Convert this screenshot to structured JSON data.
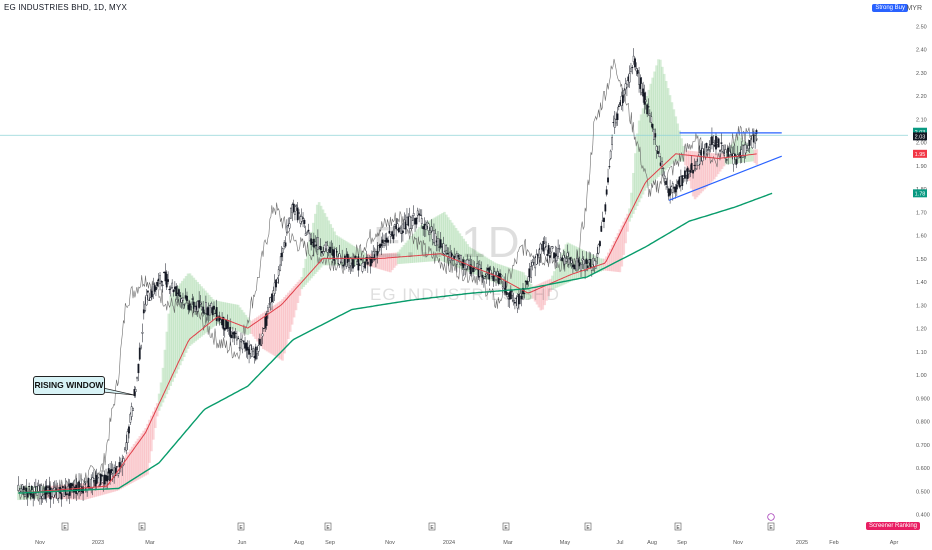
{
  "header": {
    "title": "EG INDUSTRIES BHD, 1D, MYX",
    "currency": "MYR",
    "top_flag": "Strong Buy",
    "bottom_flag": "Screener Ranking"
  },
  "watermark": {
    "symbol": "E... 1D",
    "name": "EG INDUSTRIES BHD"
  },
  "annotation": {
    "label": "RISING WINDOW"
  },
  "colors": {
    "up": "#131722",
    "down": "#131722",
    "ema_fast": "#e0404a",
    "ema_slow": "#089c6b",
    "trendline": "#2962ff",
    "cloud_bull": "#a5d6a7",
    "cloud_bear": "#f7a4aa",
    "compare_line": "#555555",
    "hline": "#8fd3d8"
  },
  "price_tags": [
    {
      "label": "2.03",
      "color": "#089981"
    },
    {
      "label": "2.03",
      "color": "#131722"
    },
    {
      "label": "1.95",
      "color": "#f23645"
    },
    {
      "label": "1.78",
      "color": "#089981"
    }
  ],
  "chart_data": {
    "type": "candlestick",
    "title": "EG INDUSTRIES BHD, 1D, MYX",
    "ylim": [
      0.4,
      2.55
    ],
    "y_ticks": [
      "2.50",
      "2.40",
      "2.30",
      "2.20",
      "2.10",
      "2.00",
      "1.90",
      "1.80",
      "1.70",
      "1.60",
      "1.50",
      "1.40",
      "1.30",
      "1.20",
      "1.10",
      "1.00",
      "0.900",
      "0.800",
      "0.700",
      "0.600",
      "0.500",
      "0.400"
    ],
    "x_ticks": [
      "Nov",
      "2023",
      "Mar",
      "Jun",
      "Aug",
      "Sep",
      "Nov",
      "2024",
      "Mar",
      "May",
      "Jul",
      "Aug",
      "Sep",
      "Nov",
      "2025",
      "Feb",
      "Apr"
    ],
    "event_markers": [
      "E",
      "E",
      "E",
      "E",
      "E",
      "E",
      "E",
      "E",
      "E"
    ],
    "price_path": [
      [
        "2022-10-20",
        0.5
      ],
      [
        "2022-12-01",
        0.49
      ],
      [
        "2023-01-05",
        0.53
      ],
      [
        "2023-02-05",
        0.6
      ],
      [
        "2023-02-15",
        0.85
      ],
      [
        "2023-02-20",
        0.97
      ],
      [
        "2023-03-01",
        1.32
      ],
      [
        "2023-03-20",
        1.42
      ],
      [
        "2023-04-15",
        1.3
      ],
      [
        "2023-05-10",
        1.28
      ],
      [
        "2023-06-05",
        1.14
      ],
      [
        "2023-06-25",
        1.09
      ],
      [
        "2023-07-15",
        1.4
      ],
      [
        "2023-08-01",
        1.73
      ],
      [
        "2023-08-20",
        1.58
      ],
      [
        "2023-09-20",
        1.5
      ],
      [
        "2023-10-15",
        1.47
      ],
      [
        "2023-11-15",
        1.62
      ],
      [
        "2023-12-10",
        1.68
      ],
      [
        "2024-01-05",
        1.53
      ],
      [
        "2024-02-01",
        1.46
      ],
      [
        "2024-03-01",
        1.42
      ],
      [
        "2024-03-20",
        1.3
      ],
      [
        "2024-04-15",
        1.55
      ],
      [
        "2024-05-20",
        1.48
      ],
      [
        "2024-06-10",
        1.47
      ],
      [
        "2024-06-20",
        1.72
      ],
      [
        "2024-06-28",
        2.06
      ],
      [
        "2024-07-20",
        2.35
      ],
      [
        "2024-08-10",
        2.03
      ],
      [
        "2024-08-25",
        1.78
      ],
      [
        "2024-09-15",
        1.87
      ],
      [
        "2024-10-10",
        2.01
      ],
      [
        "2024-11-01",
        1.92
      ],
      [
        "2024-11-25",
        2.03
      ]
    ],
    "ema_fast": [
      [
        "2022-10-20",
        0.49
      ],
      [
        "2023-01-20",
        0.52
      ],
      [
        "2023-03-01",
        0.75
      ],
      [
        "2023-04-15",
        1.15
      ],
      [
        "2023-05-15",
        1.25
      ],
      [
        "2023-06-15",
        1.2
      ],
      [
        "2023-07-20",
        1.3
      ],
      [
        "2023-09-01",
        1.5
      ],
      [
        "2023-11-01",
        1.5
      ],
      [
        "2024-01-01",
        1.52
      ],
      [
        "2024-03-01",
        1.42
      ],
      [
        "2024-04-01",
        1.35
      ],
      [
        "2024-05-15",
        1.43
      ],
      [
        "2024-06-20",
        1.48
      ],
      [
        "2024-08-01",
        1.83
      ],
      [
        "2024-09-01",
        1.95
      ],
      [
        "2024-10-15",
        1.93
      ],
      [
        "2024-11-25",
        1.95
      ]
    ],
    "ema_slow": [
      [
        "2022-10-20",
        0.49
      ],
      [
        "2023-02-01",
        0.51
      ],
      [
        "2023-03-15",
        0.62
      ],
      [
        "2023-05-01",
        0.85
      ],
      [
        "2023-06-15",
        0.95
      ],
      [
        "2023-08-01",
        1.15
      ],
      [
        "2023-10-01",
        1.28
      ],
      [
        "2023-12-01",
        1.32
      ],
      [
        "2024-02-01",
        1.35
      ],
      [
        "2024-04-01",
        1.37
      ],
      [
        "2024-06-01",
        1.42
      ],
      [
        "2024-08-01",
        1.55
      ],
      [
        "2024-09-15",
        1.66
      ],
      [
        "2024-11-01",
        1.72
      ],
      [
        "2024-12-10",
        1.78
      ]
    ],
    "trendlines": [
      {
        "from": [
          "2024-09-05",
          2.04
        ],
        "to": [
          "2024-12-20",
          2.04
        ]
      },
      {
        "from": [
          "2024-08-25",
          1.75
        ],
        "to": [
          "2024-12-20",
          1.94
        ]
      }
    ],
    "horizontal_line": 2.03,
    "legend": "none",
    "grid": false
  }
}
